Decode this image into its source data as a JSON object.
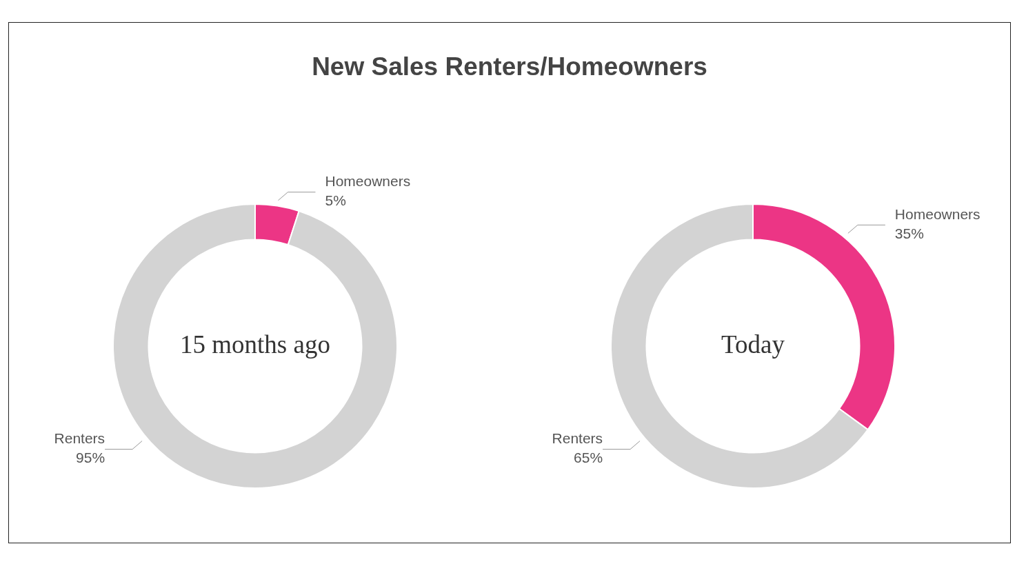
{
  "chart_data": [
    {
      "type": "donut",
      "title": "New Sales Renters/Homeowners",
      "annotations": [
        "15 months ago"
      ],
      "categories": [
        "Homeowners",
        "Renters"
      ],
      "values": [
        5,
        95
      ],
      "value_labels": [
        "5%",
        "95%"
      ],
      "colors": [
        "#ec3585",
        "#d3d3d3"
      ],
      "legend": false
    },
    {
      "type": "donut",
      "annotations": [
        "Today"
      ],
      "categories": [
        "Homeowners",
        "Renters"
      ],
      "values": [
        35,
        65
      ],
      "value_labels": [
        "35%",
        "65%"
      ],
      "colors": [
        "#ec3585",
        "#d3d3d3"
      ],
      "legend": false
    }
  ]
}
